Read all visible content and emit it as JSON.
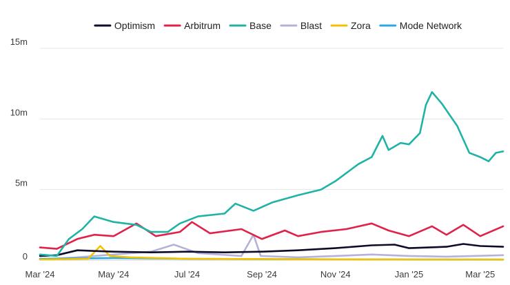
{
  "chart_data": {
    "type": "line",
    "title": "",
    "xlabel": "",
    "ylabel": "",
    "ylim": [
      0,
      15000000
    ],
    "grid": true,
    "legend_position": "top",
    "y_ticks": [
      {
        "value": 0,
        "label": "0"
      },
      {
        "value": 5000000,
        "label": "5m"
      },
      {
        "value": 10000000,
        "label": "10m"
      },
      {
        "value": 15000000,
        "label": "15m"
      }
    ],
    "x_range": [
      "2024-03-01",
      "2025-03-20"
    ],
    "x_ticks": [
      {
        "date": "2024-03-01",
        "label": "Mar '24"
      },
      {
        "date": "2024-05-01",
        "label": "May '24"
      },
      {
        "date": "2024-07-01",
        "label": "Jul '24"
      },
      {
        "date": "2024-09-01",
        "label": "Sep '24"
      },
      {
        "date": "2024-11-01",
        "label": "Nov '24"
      },
      {
        "date": "2025-01-01",
        "label": "Jan '25"
      },
      {
        "date": "2025-03-01",
        "label": "Mar '25"
      }
    ],
    "series": [
      {
        "name": "Optimism",
        "color": "#0b0b2b",
        "points": [
          [
            "2024-03-01",
            300000
          ],
          [
            "2024-03-15",
            350000
          ],
          [
            "2024-04-01",
            700000
          ],
          [
            "2024-04-15",
            650000
          ],
          [
            "2024-05-01",
            600000
          ],
          [
            "2024-06-01",
            550000
          ],
          [
            "2024-07-01",
            600000
          ],
          [
            "2024-08-01",
            550000
          ],
          [
            "2024-09-01",
            600000
          ],
          [
            "2024-10-01",
            700000
          ],
          [
            "2024-11-01",
            850000
          ],
          [
            "2024-12-01",
            1050000
          ],
          [
            "2024-12-20",
            1100000
          ],
          [
            "2025-01-01",
            850000
          ],
          [
            "2025-02-01",
            950000
          ],
          [
            "2025-02-15",
            1150000
          ],
          [
            "2025-03-01",
            1000000
          ],
          [
            "2025-03-20",
            950000
          ]
        ]
      },
      {
        "name": "Arbitrum",
        "color": "#e0214a",
        "points": [
          [
            "2024-03-01",
            900000
          ],
          [
            "2024-03-15",
            800000
          ],
          [
            "2024-04-01",
            1500000
          ],
          [
            "2024-04-15",
            1800000
          ],
          [
            "2024-05-01",
            1700000
          ],
          [
            "2024-05-20",
            2600000
          ],
          [
            "2024-06-05",
            1700000
          ],
          [
            "2024-06-25",
            2000000
          ],
          [
            "2024-07-05",
            2700000
          ],
          [
            "2024-07-20",
            1900000
          ],
          [
            "2024-08-15",
            2200000
          ],
          [
            "2024-09-01",
            1500000
          ],
          [
            "2024-09-20",
            2100000
          ],
          [
            "2024-10-01",
            1700000
          ],
          [
            "2024-10-20",
            2000000
          ],
          [
            "2024-11-10",
            2200000
          ],
          [
            "2024-12-01",
            2600000
          ],
          [
            "2024-12-15",
            2100000
          ],
          [
            "2025-01-01",
            1700000
          ],
          [
            "2025-01-20",
            2400000
          ],
          [
            "2025-02-01",
            1800000
          ],
          [
            "2025-02-15",
            2500000
          ],
          [
            "2025-03-01",
            1700000
          ],
          [
            "2025-03-20",
            2400000
          ]
        ]
      },
      {
        "name": "Base",
        "color": "#1fb3a6",
        "points": [
          [
            "2024-03-01",
            400000
          ],
          [
            "2024-03-15",
            300000
          ],
          [
            "2024-03-25",
            1500000
          ],
          [
            "2024-04-05",
            2200000
          ],
          [
            "2024-04-15",
            3100000
          ],
          [
            "2024-05-01",
            2700000
          ],
          [
            "2024-05-20",
            2500000
          ],
          [
            "2024-06-01",
            2000000
          ],
          [
            "2024-06-15",
            2000000
          ],
          [
            "2024-06-25",
            2600000
          ],
          [
            "2024-07-10",
            3100000
          ],
          [
            "2024-08-01",
            3300000
          ],
          [
            "2024-08-10",
            4000000
          ],
          [
            "2024-08-25",
            3500000
          ],
          [
            "2024-09-10",
            4100000
          ],
          [
            "2024-10-01",
            4600000
          ],
          [
            "2024-10-20",
            5000000
          ],
          [
            "2024-11-01",
            5600000
          ],
          [
            "2024-11-20",
            6800000
          ],
          [
            "2024-12-01",
            7300000
          ],
          [
            "2024-12-10",
            8800000
          ],
          [
            "2024-12-15",
            7800000
          ],
          [
            "2024-12-25",
            8300000
          ],
          [
            "2025-01-01",
            8200000
          ],
          [
            "2025-01-10",
            9000000
          ],
          [
            "2025-01-15",
            11000000
          ],
          [
            "2025-01-20",
            11900000
          ],
          [
            "2025-01-28",
            11100000
          ],
          [
            "2025-02-10",
            9500000
          ],
          [
            "2025-02-20",
            7600000
          ],
          [
            "2025-03-01",
            7300000
          ],
          [
            "2025-03-08",
            7000000
          ],
          [
            "2025-03-14",
            7600000
          ],
          [
            "2025-03-20",
            7700000
          ]
        ]
      },
      {
        "name": "Blast",
        "color": "#b6b1d8",
        "points": [
          [
            "2024-03-01",
            50000
          ],
          [
            "2024-04-01",
            200000
          ],
          [
            "2024-05-01",
            400000
          ],
          [
            "2024-06-01",
            600000
          ],
          [
            "2024-06-20",
            1100000
          ],
          [
            "2024-07-10",
            500000
          ],
          [
            "2024-08-15",
            300000
          ],
          [
            "2024-08-25",
            1800000
          ],
          [
            "2024-08-31",
            300000
          ],
          [
            "2024-10-01",
            200000
          ],
          [
            "2024-11-01",
            300000
          ],
          [
            "2024-12-01",
            400000
          ],
          [
            "2025-01-01",
            300000
          ],
          [
            "2025-02-01",
            250000
          ],
          [
            "2025-03-20",
            350000
          ]
        ]
      },
      {
        "name": "Zora",
        "color": "#f2c200",
        "points": [
          [
            "2024-03-01",
            50000
          ],
          [
            "2024-04-10",
            100000
          ],
          [
            "2024-04-20",
            1000000
          ],
          [
            "2024-04-28",
            300000
          ],
          [
            "2024-05-15",
            200000
          ],
          [
            "2024-07-01",
            100000
          ],
          [
            "2024-09-01",
            80000
          ],
          [
            "2024-11-01",
            60000
          ],
          [
            "2025-01-01",
            50000
          ],
          [
            "2025-03-20",
            50000
          ]
        ]
      },
      {
        "name": "Mode Network",
        "color": "#29a9e0",
        "points": [
          [
            "2024-03-01",
            100000
          ],
          [
            "2024-05-01",
            150000
          ],
          [
            "2024-07-01",
            100000
          ],
          [
            "2024-09-01",
            80000
          ],
          [
            "2024-11-01",
            60000
          ],
          [
            "2025-01-01",
            50000
          ],
          [
            "2025-03-20",
            40000
          ]
        ]
      }
    ]
  }
}
